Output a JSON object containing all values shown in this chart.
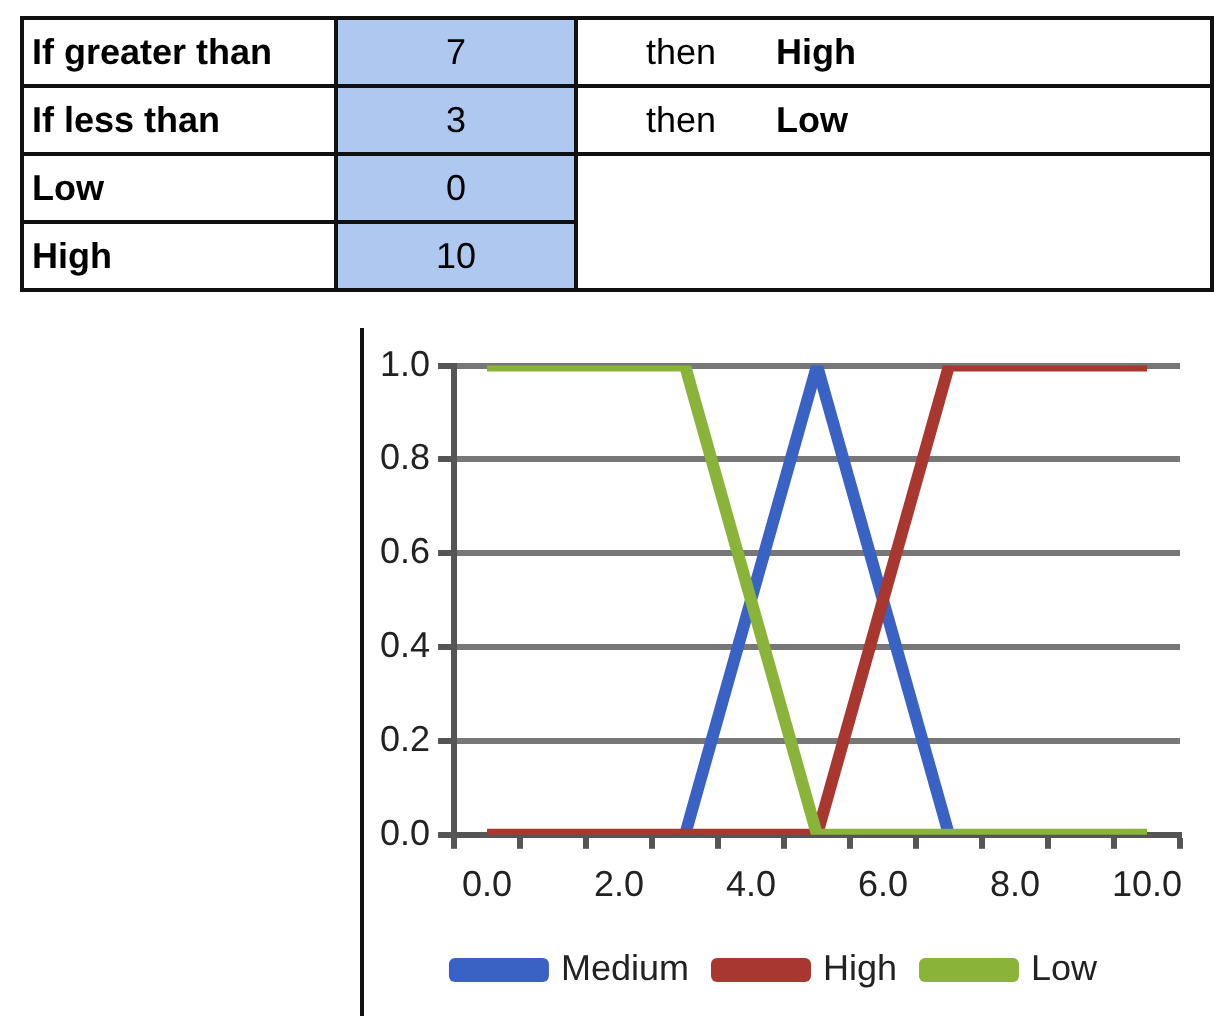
{
  "chart_data": {
    "type": "line",
    "categories": [
      "0.0",
      null,
      "2.0",
      null,
      "4.0",
      null,
      "6.0",
      null,
      "8.0",
      null,
      "10.0"
    ],
    "series": [
      {
        "name": "Medium",
        "color": "#3a62c4",
        "values": [
          null,
          null,
          null,
          0,
          0.5,
          1,
          0.5,
          0,
          null,
          null,
          null
        ]
      },
      {
        "name": "High",
        "color": "#a8382f",
        "values": [
          0,
          0,
          0,
          0,
          0,
          0,
          0.5,
          1,
          1,
          1,
          1
        ]
      },
      {
        "name": "Low",
        "color": "#8ab33a",
        "values": [
          1,
          1,
          1,
          1,
          0.5,
          0,
          0,
          0,
          0,
          0,
          0
        ]
      }
    ],
    "ylim": [
      0,
      1
    ],
    "yticks": [
      {
        "value": 0,
        "label": "0.0"
      },
      {
        "value": 0.2,
        "label": "0.2"
      },
      {
        "value": 0.4,
        "label": "0.4"
      },
      {
        "value": 0.6,
        "label": "0.6"
      },
      {
        "value": 0.8,
        "label": "0.8"
      },
      {
        "value": 1,
        "label": "1.0"
      }
    ],
    "grid": "y",
    "legend": "bottom",
    "marker": "none",
    "line_style": "solid",
    "annotations": [
      "If greater than",
      "7",
      "then",
      "High",
      "If less than",
      "3",
      "then",
      "Low",
      "Low",
      "0",
      "High",
      "10"
    ]
  }
}
